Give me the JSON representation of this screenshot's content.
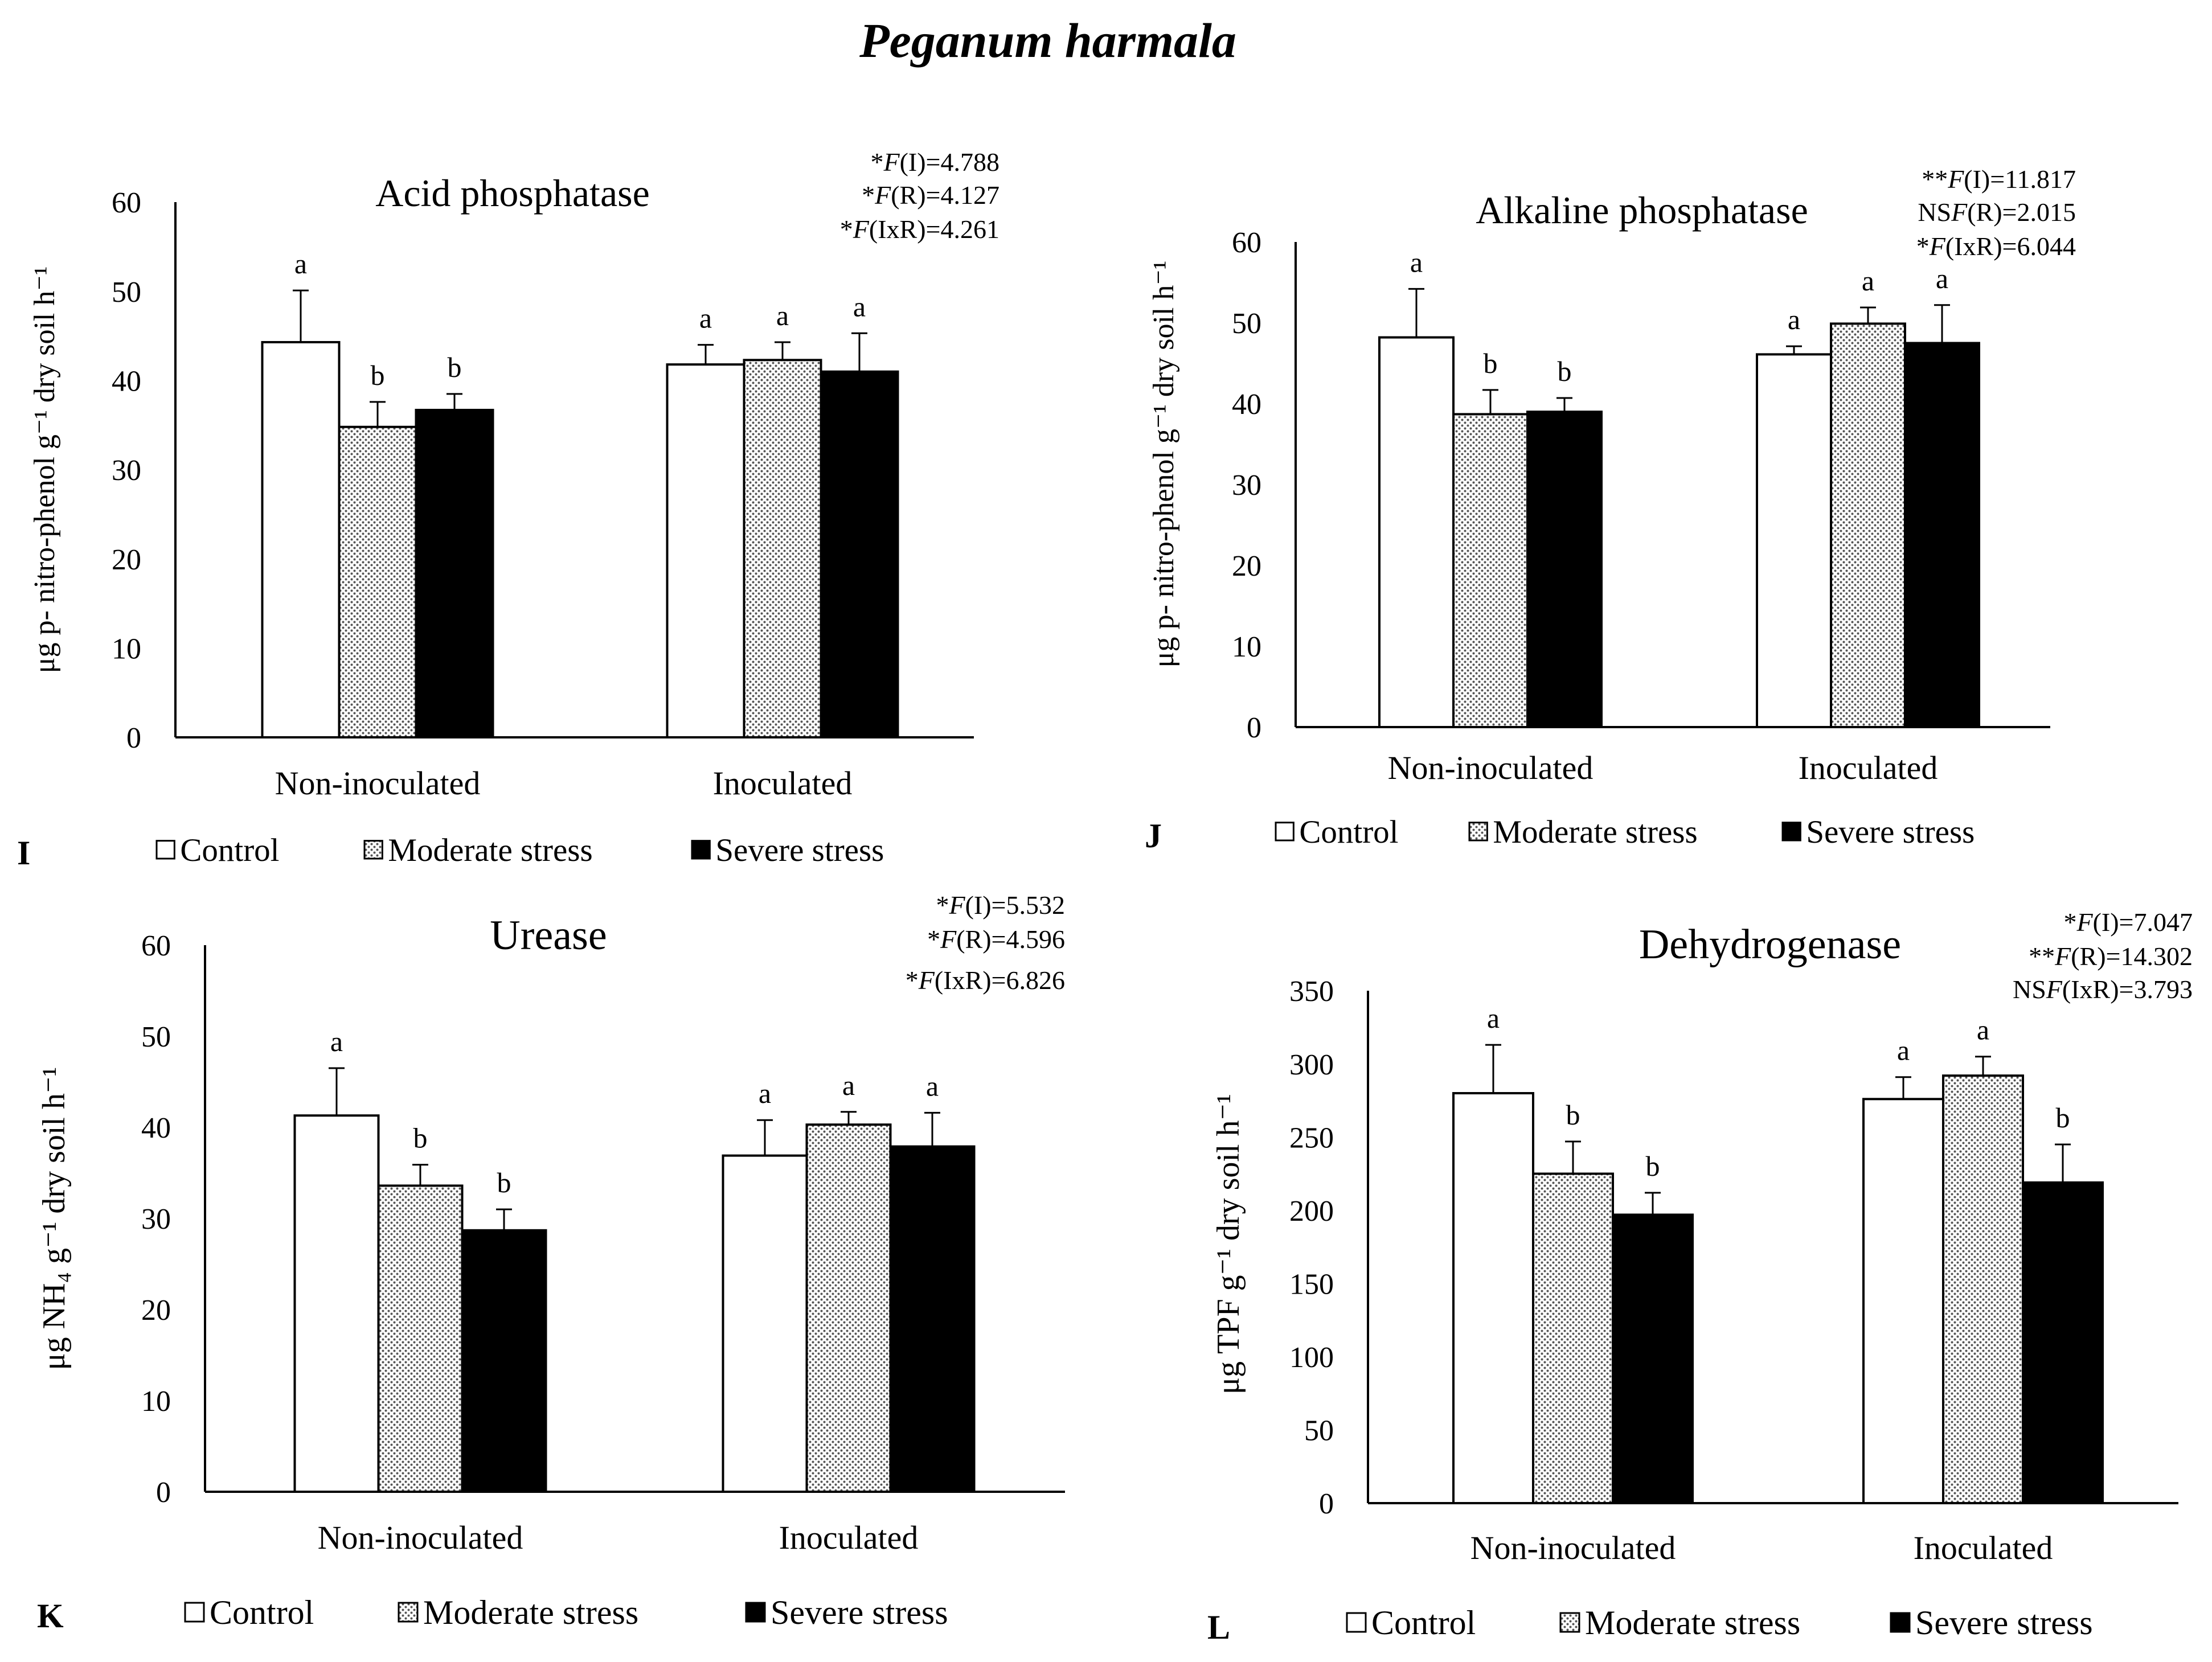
{
  "figure_title": "Peganum harmala",
  "legend_items": [
    {
      "label": "Control",
      "pattern": "open"
    },
    {
      "label": "Moderate stress",
      "pattern": "dots"
    },
    {
      "label": "Severe stress",
      "pattern": "solid"
    }
  ],
  "chart_data": [
    {
      "panel": "I",
      "type": "bar",
      "title": "Acid phosphatase",
      "ylabel": "μg p- nitro-phenol g⁻¹ dry soil h⁻¹",
      "ylim": [
        0,
        60
      ],
      "yticks": [
        0,
        10,
        20,
        30,
        40,
        50,
        60
      ],
      "categories": [
        "Non-inoculated",
        "Inoculated"
      ],
      "series": [
        {
          "name": "Control",
          "values": [
            44.3,
            41.8
          ],
          "errors": [
            5.8,
            2.2
          ],
          "letters": [
            "a",
            "a"
          ]
        },
        {
          "name": "Moderate stress",
          "values": [
            34.8,
            42.3
          ],
          "errors": [
            2.8,
            2.0
          ],
          "letters": [
            "b",
            "a"
          ]
        },
        {
          "name": "Severe stress",
          "values": [
            36.7,
            41.0
          ],
          "errors": [
            1.8,
            4.3
          ],
          "letters": [
            "b",
            "a"
          ]
        }
      ],
      "stats": [
        "*F(I)=4.788",
        "*F(R)=4.127",
        "*F(IxR)=4.261"
      ]
    },
    {
      "panel": "J",
      "type": "bar",
      "title": "Alkaline phosphatase",
      "ylabel": "μg p- nitro-phenol g⁻¹ dry soil h⁻¹",
      "ylim": [
        0,
        60
      ],
      "yticks": [
        0,
        10,
        20,
        30,
        40,
        50,
        60
      ],
      "categories": [
        "Non-inoculated",
        "Inoculated"
      ],
      "series": [
        {
          "name": "Control",
          "values": [
            48.2,
            46.1
          ],
          "errors": [
            6.0,
            1.0
          ],
          "letters": [
            "a",
            "a"
          ]
        },
        {
          "name": "Moderate stress",
          "values": [
            38.7,
            49.9
          ],
          "errors": [
            3.0,
            2.0
          ],
          "letters": [
            "b",
            "a"
          ]
        },
        {
          "name": "Severe stress",
          "values": [
            39.0,
            47.5
          ],
          "errors": [
            1.7,
            4.7
          ],
          "letters": [
            "b",
            "a"
          ]
        }
      ],
      "stats": [
        "**F(I)=11.817",
        "NSF(R)=2.015",
        "*F(IxR)=6.044"
      ]
    },
    {
      "panel": "K",
      "type": "bar",
      "title": "Urease",
      "ylabel": "μg NH₄ g⁻¹ dry soil h⁻¹",
      "ylim": [
        0,
        60
      ],
      "yticks": [
        0,
        10,
        20,
        30,
        40,
        50,
        60
      ],
      "categories": [
        "Non-inoculated",
        "Inoculated"
      ],
      "series": [
        {
          "name": "Control",
          "values": [
            41.3,
            36.9
          ],
          "errors": [
            5.2,
            3.9
          ],
          "letters": [
            "a",
            "a"
          ]
        },
        {
          "name": "Moderate stress",
          "values": [
            33.6,
            40.3
          ],
          "errors": [
            2.3,
            1.4
          ],
          "letters": [
            "b",
            "a"
          ]
        },
        {
          "name": "Severe stress",
          "values": [
            28.7,
            37.9
          ],
          "errors": [
            2.3,
            3.7
          ],
          "letters": [
            "b",
            "a"
          ]
        }
      ],
      "stats": [
        "*F(I)=5.532",
        "*F(R)=4.596",
        "*F(IxR)=6.826"
      ]
    },
    {
      "panel": "L",
      "type": "bar",
      "title": "Dehydrogenase",
      "ylabel": "μg TPF g⁻¹ dry soil h⁻¹",
      "ylim": [
        0,
        350
      ],
      "yticks": [
        0,
        50,
        100,
        150,
        200,
        250,
        300,
        350
      ],
      "categories": [
        "Non-inoculated",
        "Inoculated"
      ],
      "series": [
        {
          "name": "Control",
          "values": [
            280,
            276
          ],
          "errors": [
            33,
            15
          ],
          "letters": [
            "a",
            "a"
          ]
        },
        {
          "name": "Moderate stress",
          "values": [
            225,
            292
          ],
          "errors": [
            22,
            13
          ],
          "letters": [
            "b",
            "a"
          ]
        },
        {
          "name": "Severe stress",
          "values": [
            197,
            219
          ],
          "errors": [
            15,
            26
          ],
          "letters": [
            "b",
            "b"
          ]
        }
      ],
      "stats": [
        "*F(I)=7.047",
        "**F(R)=14.302",
        "NSF(IxR)=3.793"
      ]
    }
  ]
}
